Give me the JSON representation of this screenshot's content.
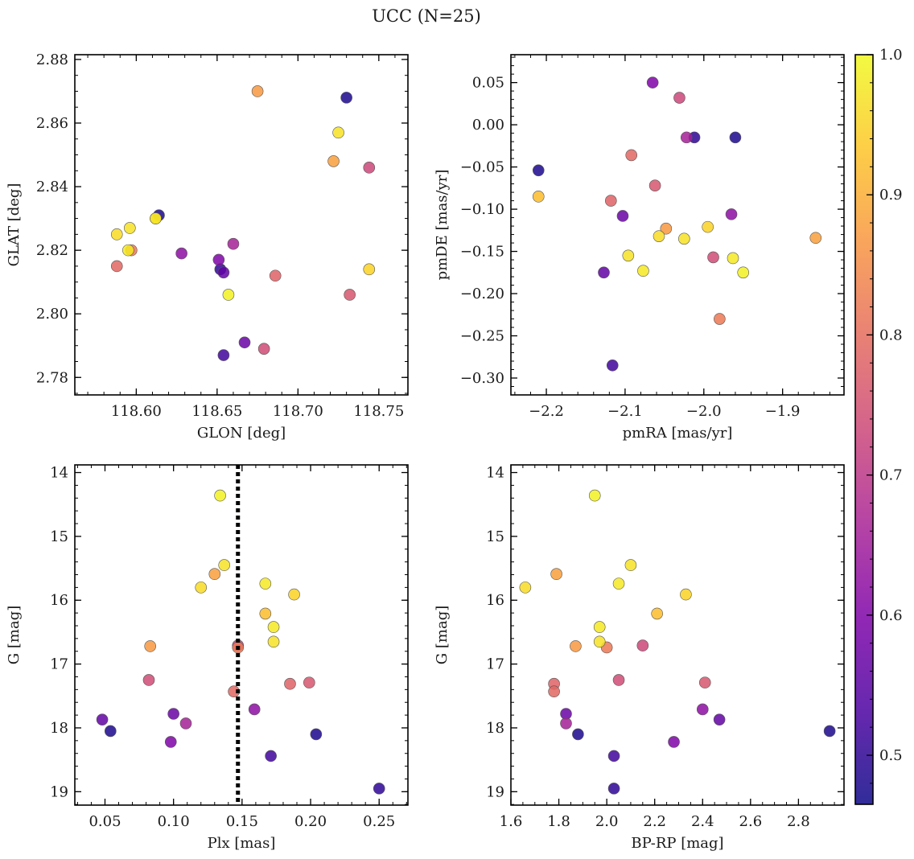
{
  "chart_data": {
    "title": "UCC (N=25)",
    "type": "scatter",
    "colorbar": {
      "range": [
        0.465,
        1.0
      ],
      "ticks": [
        0.5,
        0.6,
        0.7,
        0.8,
        0.9,
        1.0
      ],
      "tick_labels": [
        "0.5",
        "0.6",
        "0.7",
        "0.8",
        "0.9",
        "1.0"
      ],
      "colormap": "plasma",
      "location": "right"
    },
    "points": [
      {
        "glon": 118.614,
        "glat": 2.831,
        "pmra": -2.21,
        "pmde": -0.054,
        "plx": 0.054,
        "g": 18.05,
        "bprp": 2.93,
        "c": 0.48
      },
      {
        "glon": 118.73,
        "glat": 2.868,
        "pmra": -1.96,
        "pmde": -0.015,
        "plx": 0.204,
        "g": 18.1,
        "bprp": 1.88,
        "c": 0.48
      },
      {
        "glon": 118.652,
        "glat": 2.814,
        "pmra": -2.012,
        "pmde": -0.015,
        "plx": 0.25,
        "g": 18.95,
        "bprp": 2.03,
        "c": 0.5
      },
      {
        "glon": 118.654,
        "glat": 2.787,
        "pmra": -2.116,
        "pmde": -0.285,
        "plx": 0.171,
        "g": 18.44,
        "bprp": 2.03,
        "c": 0.52
      },
      {
        "glon": 118.654,
        "glat": 2.813,
        "pmra": -2.127,
        "pmde": -0.175,
        "plx": 0.048,
        "g": 17.87,
        "bprp": 2.47,
        "c": 0.56
      },
      {
        "glon": 118.667,
        "glat": 2.791,
        "pmra": -2.103,
        "pmde": -0.108,
        "plx": 0.1,
        "g": 17.78,
        "bprp": 1.83,
        "c": 0.57
      },
      {
        "glon": 118.651,
        "glat": 2.817,
        "pmra": -2.065,
        "pmde": 0.05,
        "plx": 0.098,
        "g": 18.22,
        "bprp": 2.28,
        "c": 0.6
      },
      {
        "glon": 118.628,
        "glat": 2.819,
        "pmra": -1.965,
        "pmde": -0.106,
        "plx": 0.159,
        "g": 17.71,
        "bprp": 2.4,
        "c": 0.62
      },
      {
        "glon": 118.66,
        "glat": 2.822,
        "pmra": -2.022,
        "pmde": -0.015,
        "plx": 0.109,
        "g": 17.93,
        "bprp": 1.83,
        "c": 0.66
      },
      {
        "glon": 118.744,
        "glat": 2.846,
        "pmra": -2.031,
        "pmde": 0.032,
        "plx": 0.147,
        "g": 16.71,
        "bprp": 2.15,
        "c": 0.73
      },
      {
        "glon": 118.679,
        "glat": 2.789,
        "pmra": -1.988,
        "pmde": -0.157,
        "plx": 0.082,
        "g": 17.25,
        "bprp": 2.05,
        "c": 0.74
      },
      {
        "glon": 118.732,
        "glat": 2.806,
        "pmra": -2.062,
        "pmde": -0.072,
        "plx": 0.199,
        "g": 17.29,
        "bprp": 2.41,
        "c": 0.76
      },
      {
        "glon": 118.686,
        "glat": 2.812,
        "pmra": -2.118,
        "pmde": -0.09,
        "plx": 0.185,
        "g": 17.31,
        "bprp": 1.78,
        "c": 0.78
      },
      {
        "glon": 118.588,
        "glat": 2.815,
        "pmra": -2.092,
        "pmde": -0.036,
        "plx": 0.144,
        "g": 17.43,
        "bprp": 1.78,
        "c": 0.79
      },
      {
        "glon": 118.597,
        "glat": 2.82,
        "pmra": -1.98,
        "pmde": -0.23,
        "plx": 0.147,
        "g": 16.74,
        "bprp": 2.0,
        "c": 0.82
      },
      {
        "glon": 118.675,
        "glat": 2.87,
        "pmra": -2.048,
        "pmde": -0.123,
        "plx": 0.083,
        "g": 16.72,
        "bprp": 1.87,
        "c": 0.87
      },
      {
        "glon": 118.722,
        "glat": 2.848,
        "pmra": -1.858,
        "pmde": -0.134,
        "plx": 0.13,
        "g": 15.59,
        "bprp": 1.79,
        "c": 0.88
      },
      {
        "glon": 118.612,
        "glat": 2.83,
        "pmra": -2.21,
        "pmde": -0.085,
        "plx": 0.167,
        "g": 16.21,
        "bprp": 2.21,
        "c": 0.92
      },
      {
        "glon": 118.744,
        "glat": 2.814,
        "pmra": -1.995,
        "pmde": -0.121,
        "plx": 0.188,
        "g": 15.91,
        "bprp": 2.33,
        "c": 0.95
      },
      {
        "glon": 118.588,
        "glat": 2.825,
        "pmra": -2.057,
        "pmde": -0.132,
        "plx": 0.12,
        "g": 15.8,
        "bprp": 1.66,
        "c": 0.96
      },
      {
        "glon": 118.725,
        "glat": 2.857,
        "pmra": -2.025,
        "pmde": -0.135,
        "plx": 0.137,
        "g": 15.45,
        "bprp": 2.1,
        "c": 0.97
      },
      {
        "glon": 118.596,
        "glat": 2.827,
        "pmra": -2.096,
        "pmde": -0.155,
        "plx": 0.173,
        "g": 16.65,
        "bprp": 1.97,
        "c": 0.97
      },
      {
        "glon": 118.595,
        "glat": 2.82,
        "pmra": -1.963,
        "pmde": -0.158,
        "plx": 0.173,
        "g": 16.42,
        "bprp": 1.97,
        "c": 0.98
      },
      {
        "glon": 118.657,
        "glat": 2.806,
        "pmra": -1.95,
        "pmde": -0.175,
        "plx": 0.134,
        "g": 14.36,
        "bprp": 1.95,
        "c": 0.99
      },
      {
        "glon": 118.612,
        "glat": 2.83,
        "pmra": -2.077,
        "pmde": -0.173,
        "plx": 0.167,
        "g": 15.74,
        "bprp": 2.05,
        "c": 0.98
      }
    ],
    "panels": [
      {
        "id": "glon-glat",
        "x": "glon",
        "y": "glat",
        "xlabel": "GLON [deg]",
        "ylabel": "GLAT [deg]",
        "xlim": [
          118.562,
          118.768
        ],
        "ylim": [
          2.7745,
          2.8815
        ],
        "y_inverted": false,
        "xticks": [
          118.6,
          118.65,
          118.7,
          118.75
        ],
        "xtick_labels": [
          "118.60",
          "118.65",
          "118.70",
          "118.75"
        ],
        "yticks": [
          2.78,
          2.8,
          2.82,
          2.84,
          2.86,
          2.88
        ],
        "ytick_labels": [
          "2.78",
          "2.80",
          "2.82",
          "2.84",
          "2.86",
          "2.88"
        ],
        "xminor": 0.01,
        "yminor": 0.005
      },
      {
        "id": "pmra-pmde",
        "x": "pmra",
        "y": "pmde",
        "xlabel": "pmRA [mas/yr]",
        "ylabel": "pmDE [mas/yr]",
        "xlim": [
          -2.245,
          -1.822
        ],
        "ylim": [
          -0.32,
          0.083
        ],
        "y_inverted": false,
        "xticks": [
          -2.2,
          -2.1,
          -2.0,
          -1.9
        ],
        "xtick_labels": [
          "−2.2",
          "−2.1",
          "−2.0",
          "−1.9"
        ],
        "yticks": [
          -0.3,
          -0.25,
          -0.2,
          -0.15,
          -0.1,
          -0.05,
          0.0,
          0.05
        ],
        "ytick_labels": [
          "−0.30",
          "−0.25",
          "−0.20",
          "−0.15",
          "−0.10",
          "−0.05",
          "0.00",
          "0.05"
        ],
        "xminor": 0.02,
        "yminor": 0.01
      },
      {
        "id": "plx-g",
        "x": "plx",
        "y": "g",
        "xlabel": "Plx [mas]",
        "ylabel": "G [mag]",
        "xlim": [
          0.028,
          0.271
        ],
        "ylim": [
          13.88,
          19.21
        ],
        "y_inverted": true,
        "xticks": [
          0.05,
          0.1,
          0.15,
          0.2,
          0.25
        ],
        "xtick_labels": [
          "0.05",
          "0.10",
          "0.15",
          "0.20",
          "0.25"
        ],
        "yticks": [
          14,
          15,
          16,
          17,
          18,
          19
        ],
        "ytick_labels": [
          "14",
          "15",
          "16",
          "17",
          "18",
          "19"
        ],
        "xminor": 0.01,
        "yminor": 0.2,
        "vline": {
          "x": 0.147,
          "style": "dotted",
          "color": "#000000"
        }
      },
      {
        "id": "bprp-g",
        "x": "bprp",
        "y": "g",
        "xlabel": "BP-RP [mag]",
        "ylabel": "G [mag]",
        "xlim": [
          1.6,
          2.99
        ],
        "ylim": [
          13.88,
          19.21
        ],
        "y_inverted": true,
        "xticks": [
          1.6,
          1.8,
          2.0,
          2.2,
          2.4,
          2.6,
          2.8
        ],
        "xtick_labels": [
          "1.6",
          "1.8",
          "2.0",
          "2.2",
          "2.4",
          "2.6",
          "2.8"
        ],
        "yticks": [
          14,
          15,
          16,
          17,
          18,
          19
        ],
        "ytick_labels": [
          "14",
          "15",
          "16",
          "17",
          "18",
          "19"
        ],
        "xminor": 0.05,
        "yminor": 0.2
      }
    ]
  }
}
